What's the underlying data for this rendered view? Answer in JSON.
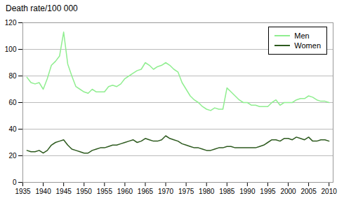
{
  "chart_data": {
    "type": "line",
    "title": "Death rate/100 000",
    "x": [
      1936,
      1937,
      1938,
      1939,
      1940,
      1941,
      1942,
      1943,
      1944,
      1945,
      1946,
      1947,
      1948,
      1949,
      1950,
      1951,
      1952,
      1953,
      1954,
      1955,
      1956,
      1957,
      1958,
      1959,
      1960,
      1961,
      1962,
      1963,
      1964,
      1965,
      1966,
      1967,
      1968,
      1969,
      1970,
      1971,
      1972,
      1973,
      1974,
      1975,
      1976,
      1977,
      1978,
      1979,
      1980,
      1981,
      1982,
      1983,
      1984,
      1985,
      1986,
      1987,
      1988,
      1989,
      1990,
      1991,
      1992,
      1993,
      1994,
      1995,
      1996,
      1997,
      1998,
      1999,
      2000,
      2001,
      2002,
      2003,
      2004,
      2005,
      2006,
      2007,
      2008,
      2009,
      2010
    ],
    "series": [
      {
        "name": "Men",
        "color": "#90EE90",
        "values": [
          79,
          75,
          74,
          75,
          70,
          78,
          88,
          91,
          95,
          113,
          89,
          80,
          72,
          70,
          68,
          67,
          70,
          68,
          68,
          68,
          72,
          73,
          72,
          74,
          78,
          80,
          82,
          84,
          85,
          90,
          88,
          85,
          87,
          88,
          90,
          88,
          85,
          83,
          75,
          70,
          65,
          62,
          60,
          57,
          55,
          54,
          56,
          55,
          55,
          71,
          68,
          65,
          62,
          60,
          60,
          58,
          58,
          57,
          57,
          57,
          60,
          62,
          58,
          60,
          60,
          60,
          62,
          63,
          63,
          65,
          64,
          62,
          61,
          61,
          60
        ]
      },
      {
        "name": "Women",
        "color": "#2d5a1e",
        "values": [
          24,
          23,
          23,
          24,
          22,
          24,
          28,
          30,
          31,
          32,
          28,
          25,
          24,
          23,
          22,
          22,
          24,
          25,
          26,
          26,
          27,
          28,
          28,
          29,
          30,
          31,
          32,
          30,
          31,
          33,
          32,
          31,
          31,
          32,
          35,
          33,
          32,
          31,
          29,
          28,
          27,
          26,
          26,
          25,
          24,
          24,
          25,
          26,
          26,
          27,
          27,
          26,
          26,
          26,
          26,
          26,
          26,
          27,
          28,
          30,
          32,
          32,
          31,
          33,
          33,
          32,
          34,
          33,
          32,
          34,
          31,
          31,
          32,
          32,
          31
        ]
      }
    ],
    "xlim": [
      1935,
      2011
    ],
    "ylim": [
      0,
      120
    ],
    "xticks": [
      1935,
      1940,
      1945,
      1950,
      1955,
      1960,
      1965,
      1970,
      1975,
      1980,
      1985,
      1990,
      1995,
      2000,
      2005,
      2010
    ],
    "yticks": [
      0,
      20,
      40,
      60,
      80,
      100,
      120
    ],
    "grid": true,
    "legend": "upper right"
  }
}
